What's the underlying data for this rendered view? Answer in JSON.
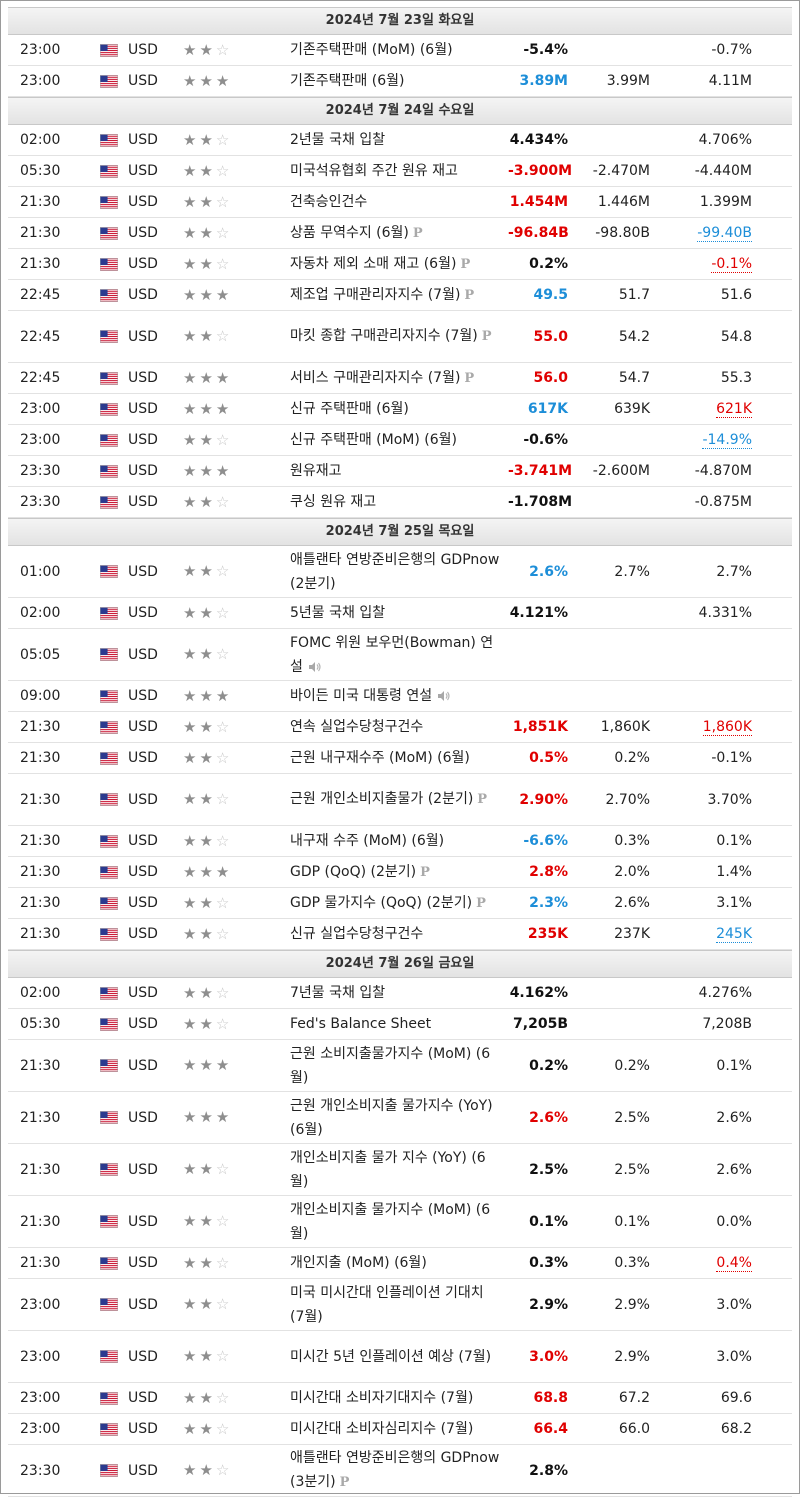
{
  "colors": {
    "actual_up": "#e00000",
    "actual_down": "#1d8ed8",
    "header_bg": "#e8e8e8"
  },
  "days": [
    {
      "header": "2024년 7월 23일 화요일",
      "events": [
        {
          "time": "23:00",
          "currency": "USD",
          "stars": 2,
          "name": "기존주택판매 (MoM) (6월)",
          "badge": "",
          "speaker": false,
          "actual": "-5.4%",
          "actual_color": "blk",
          "forecast": "",
          "previous": "-0.7%",
          "prev_style": "",
          "h": 31
        },
        {
          "time": "23:00",
          "currency": "USD",
          "stars": 3,
          "name": "기존주택판매 (6월)",
          "badge": "",
          "speaker": false,
          "actual": "3.89M",
          "actual_color": "blue",
          "forecast": "3.99M",
          "previous": "4.11M",
          "prev_style": "",
          "h": 31
        }
      ]
    },
    {
      "header": "2024년 7월 24일 수요일",
      "events": [
        {
          "time": "02:00",
          "currency": "USD",
          "stars": 2,
          "name": "2년물 국채 입찰",
          "badge": "",
          "speaker": false,
          "actual": "4.434%",
          "actual_color": "blk",
          "forecast": "",
          "previous": "4.706%",
          "prev_style": "",
          "h": 31
        },
        {
          "time": "05:30",
          "currency": "USD",
          "stars": 2,
          "name": "미국석유협회 주간 원유 재고",
          "badge": "",
          "speaker": false,
          "actual": "-3.900M",
          "actual_color": "red",
          "forecast": "-2.470M",
          "previous": "-4.440M",
          "prev_style": "",
          "h": 31
        },
        {
          "time": "21:30",
          "currency": "USD",
          "stars": 2,
          "name": "건축승인건수",
          "badge": "",
          "speaker": false,
          "actual": "1.454M",
          "actual_color": "red",
          "forecast": "1.446M",
          "previous": "1.399M",
          "prev_style": "",
          "h": 31
        },
        {
          "time": "21:30",
          "currency": "USD",
          "stars": 2,
          "name": "상품 무역수지 (6월)",
          "badge": "P",
          "speaker": false,
          "actual": "-96.84B",
          "actual_color": "red",
          "forecast": "-98.80B",
          "previous": "-99.40B",
          "prev_style": "prev-blue",
          "h": 31
        },
        {
          "time": "21:30",
          "currency": "USD",
          "stars": 2,
          "name": "자동차 제외 소매 재고 (6월)",
          "badge": "P",
          "speaker": false,
          "actual": "0.2%",
          "actual_color": "blk",
          "forecast": "",
          "previous": "-0.1%",
          "prev_style": "prev-red",
          "h": 31
        },
        {
          "time": "22:45",
          "currency": "USD",
          "stars": 3,
          "name": "제조업 구매관리자지수 (7월)",
          "badge": "P",
          "speaker": false,
          "actual": "49.5",
          "actual_color": "blue",
          "forecast": "51.7",
          "previous": "51.6",
          "prev_style": "",
          "h": 31
        },
        {
          "time": "22:45",
          "currency": "USD",
          "stars": 2,
          "name": "마킷 종합 구매관리자지수 (7월)",
          "badge": "P",
          "speaker": false,
          "actual": "55.0",
          "actual_color": "red",
          "forecast": "54.2",
          "previous": "54.8",
          "prev_style": "",
          "h": 52
        },
        {
          "time": "22:45",
          "currency": "USD",
          "stars": 3,
          "name": "서비스 구매관리자지수 (7월)",
          "badge": "P",
          "speaker": false,
          "actual": "56.0",
          "actual_color": "red",
          "forecast": "54.7",
          "previous": "55.3",
          "prev_style": "",
          "h": 31
        },
        {
          "time": "23:00",
          "currency": "USD",
          "stars": 3,
          "name": "신규 주택판매 (6월)",
          "badge": "",
          "speaker": false,
          "actual": "617K",
          "actual_color": "blue",
          "forecast": "639K",
          "previous": "621K",
          "prev_style": "prev-red",
          "h": 31
        },
        {
          "time": "23:00",
          "currency": "USD",
          "stars": 2,
          "name": "신규 주택판매 (MoM) (6월)",
          "badge": "",
          "speaker": false,
          "actual": "-0.6%",
          "actual_color": "blk",
          "forecast": "",
          "previous": "-14.9%",
          "prev_style": "prev-blue",
          "h": 31
        },
        {
          "time": "23:30",
          "currency": "USD",
          "stars": 3,
          "name": "원유재고",
          "badge": "",
          "speaker": false,
          "actual": "-3.741M",
          "actual_color": "red",
          "forecast": "-2.600M",
          "previous": "-4.870M",
          "prev_style": "",
          "h": 31
        },
        {
          "time": "23:30",
          "currency": "USD",
          "stars": 2,
          "name": "쿠싱 원유 재고",
          "badge": "",
          "speaker": false,
          "actual": "-1.708M",
          "actual_color": "blk",
          "forecast": "",
          "previous": "-0.875M",
          "prev_style": "",
          "h": 31
        }
      ]
    },
    {
      "header": "2024년 7월 25일 목요일",
      "events": [
        {
          "time": "01:00",
          "currency": "USD",
          "stars": 2,
          "name": "애틀랜타 연방준비은행의 GDPnow (2분기)",
          "badge": "",
          "speaker": false,
          "actual": "2.6%",
          "actual_color": "blue",
          "forecast": "2.7%",
          "previous": "2.7%",
          "prev_style": "",
          "h": 52
        },
        {
          "time": "02:00",
          "currency": "USD",
          "stars": 2,
          "name": "5년물 국채 입찰",
          "badge": "",
          "speaker": false,
          "actual": "4.121%",
          "actual_color": "blk",
          "forecast": "",
          "previous": "4.331%",
          "prev_style": "",
          "h": 31
        },
        {
          "time": "05:05",
          "currency": "USD",
          "stars": 2,
          "name": "FOMC 위원 보우먼(Bowman) 연설",
          "badge": "",
          "speaker": true,
          "actual": "",
          "actual_color": "blk",
          "forecast": "",
          "previous": "",
          "prev_style": "",
          "h": 52
        },
        {
          "time": "09:00",
          "currency": "USD",
          "stars": 3,
          "name": "바이든 미국 대통령 연설",
          "badge": "",
          "speaker": true,
          "actual": "",
          "actual_color": "blk",
          "forecast": "",
          "previous": "",
          "prev_style": "",
          "h": 31
        },
        {
          "time": "21:30",
          "currency": "USD",
          "stars": 2,
          "name": "연속 실업수당청구건수",
          "badge": "",
          "speaker": false,
          "actual": "1,851K",
          "actual_color": "red",
          "forecast": "1,860K",
          "previous": "1,860K",
          "prev_style": "prev-red",
          "h": 31
        },
        {
          "time": "21:30",
          "currency": "USD",
          "stars": 2,
          "name": "근원 내구재수주 (MoM) (6월)",
          "badge": "",
          "speaker": false,
          "actual": "0.5%",
          "actual_color": "red",
          "forecast": "0.2%",
          "previous": "-0.1%",
          "prev_style": "",
          "h": 31
        },
        {
          "time": "21:30",
          "currency": "USD",
          "stars": 2,
          "name": "근원 개인소비지출물가 (2분기)",
          "badge": "P",
          "speaker": false,
          "actual": "2.90%",
          "actual_color": "red",
          "forecast": "2.70%",
          "previous": "3.70%",
          "prev_style": "",
          "h": 52
        },
        {
          "time": "21:30",
          "currency": "USD",
          "stars": 2,
          "name": "내구재 수주 (MoM) (6월)",
          "badge": "",
          "speaker": false,
          "actual": "-6.6%",
          "actual_color": "blue",
          "forecast": "0.3%",
          "previous": "0.1%",
          "prev_style": "",
          "h": 31
        },
        {
          "time": "21:30",
          "currency": "USD",
          "stars": 3,
          "name": "GDP (QoQ) (2분기)",
          "badge": "P",
          "speaker": false,
          "actual": "2.8%",
          "actual_color": "red",
          "forecast": "2.0%",
          "previous": "1.4%",
          "prev_style": "",
          "h": 31
        },
        {
          "time": "21:30",
          "currency": "USD",
          "stars": 2,
          "name": "GDP 물가지수 (QoQ) (2분기)",
          "badge": "P",
          "speaker": false,
          "actual": "2.3%",
          "actual_color": "blue",
          "forecast": "2.6%",
          "previous": "3.1%",
          "prev_style": "",
          "h": 31
        },
        {
          "time": "21:30",
          "currency": "USD",
          "stars": 2,
          "name": "신규 실업수당청구건수",
          "badge": "",
          "speaker": false,
          "actual": "235K",
          "actual_color": "red",
          "forecast": "237K",
          "previous": "245K",
          "prev_style": "prev-blue",
          "h": 31
        }
      ]
    },
    {
      "header": "2024년 7월 26일 금요일",
      "events": [
        {
          "time": "02:00",
          "currency": "USD",
          "stars": 2,
          "name": "7년물 국채 입찰",
          "badge": "",
          "speaker": false,
          "actual": "4.162%",
          "actual_color": "blk",
          "forecast": "",
          "previous": "4.276%",
          "prev_style": "",
          "h": 31
        },
        {
          "time": "05:30",
          "currency": "USD",
          "stars": 2,
          "name": "Fed's Balance Sheet",
          "badge": "",
          "speaker": false,
          "actual": "7,205B",
          "actual_color": "blk",
          "forecast": "",
          "previous": "7,208B",
          "prev_style": "",
          "h": 31
        },
        {
          "time": "21:30",
          "currency": "USD",
          "stars": 3,
          "name": "근원 소비지출물가지수 (MoM) (6월)",
          "badge": "",
          "speaker": false,
          "actual": "0.2%",
          "actual_color": "blk",
          "forecast": "0.2%",
          "previous": "0.1%",
          "prev_style": "",
          "h": 52
        },
        {
          "time": "21:30",
          "currency": "USD",
          "stars": 3,
          "name": "근원 개인소비지출 물가지수 (YoY) (6월)",
          "badge": "",
          "speaker": false,
          "actual": "2.6%",
          "actual_color": "red",
          "forecast": "2.5%",
          "previous": "2.6%",
          "prev_style": "",
          "h": 52
        },
        {
          "time": "21:30",
          "currency": "USD",
          "stars": 2,
          "name": "개인소비지출 물가 지수 (YoY) (6월)",
          "badge": "",
          "speaker": false,
          "actual": "2.5%",
          "actual_color": "blk",
          "forecast": "2.5%",
          "previous": "2.6%",
          "prev_style": "",
          "h": 52
        },
        {
          "time": "21:30",
          "currency": "USD",
          "stars": 2,
          "name": "개인소비지출 물가지수 (MoM) (6월)",
          "badge": "",
          "speaker": false,
          "actual": "0.1%",
          "actual_color": "blk",
          "forecast": "0.1%",
          "previous": "0.0%",
          "prev_style": "",
          "h": 52
        },
        {
          "time": "21:30",
          "currency": "USD",
          "stars": 2,
          "name": "개인지출 (MoM) (6월)",
          "badge": "",
          "speaker": false,
          "actual": "0.3%",
          "actual_color": "blk",
          "forecast": "0.3%",
          "previous": "0.4%",
          "prev_style": "prev-red",
          "h": 31
        },
        {
          "time": "23:00",
          "currency": "USD",
          "stars": 2,
          "name": "미국 미시간대 인플레이션 기대치 (7월)",
          "badge": "",
          "speaker": false,
          "actual": "2.9%",
          "actual_color": "blk",
          "forecast": "2.9%",
          "previous": "3.0%",
          "prev_style": "",
          "h": 52
        },
        {
          "time": "23:00",
          "currency": "USD",
          "stars": 2,
          "name": "미시간 5년 인플레이션 예상 (7월)",
          "badge": "",
          "speaker": false,
          "actual": "3.0%",
          "actual_color": "red",
          "forecast": "2.9%",
          "previous": "3.0%",
          "prev_style": "",
          "h": 52
        },
        {
          "time": "23:00",
          "currency": "USD",
          "stars": 2,
          "name": "미시간대 소비자기대지수 (7월)",
          "badge": "",
          "speaker": false,
          "actual": "68.8",
          "actual_color": "red",
          "forecast": "67.2",
          "previous": "69.6",
          "prev_style": "",
          "h": 31
        },
        {
          "time": "23:00",
          "currency": "USD",
          "stars": 2,
          "name": "미시간대 소비자심리지수 (7월)",
          "badge": "",
          "speaker": false,
          "actual": "66.4",
          "actual_color": "red",
          "forecast": "66.0",
          "previous": "68.2",
          "prev_style": "",
          "h": 31
        },
        {
          "time": "23:30",
          "currency": "USD",
          "stars": 2,
          "name": "애틀랜타 연방준비은행의 GDPnow (3분기)",
          "badge": "P",
          "speaker": false,
          "actual": "2.8%",
          "actual_color": "blk",
          "forecast": "",
          "previous": "",
          "prev_style": "",
          "h": 52
        }
      ]
    }
  ]
}
